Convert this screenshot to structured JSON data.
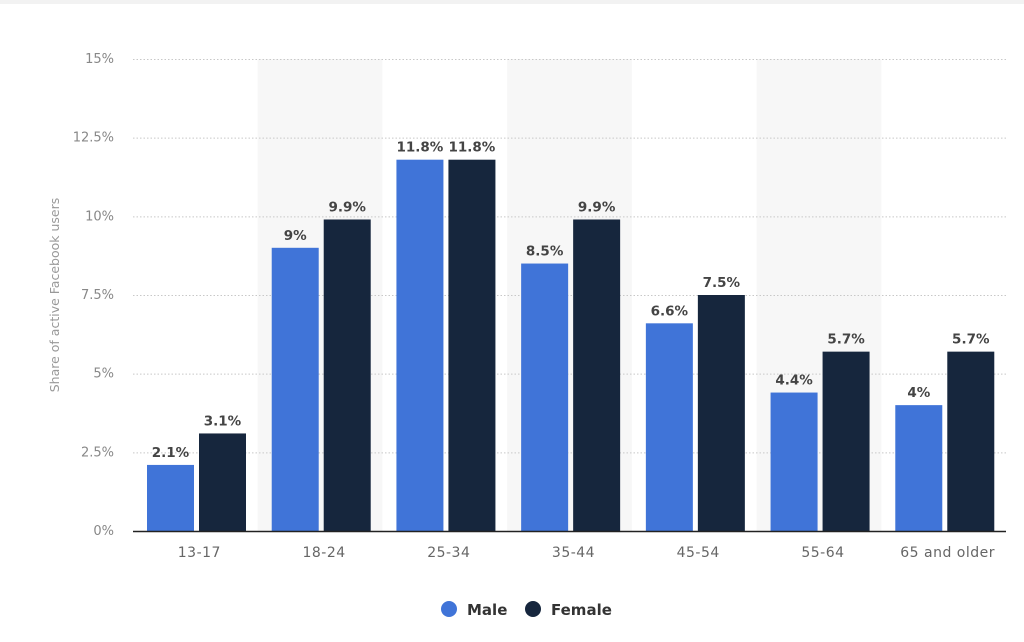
{
  "chart_data": {
    "type": "bar",
    "title": "",
    "xlabel": "",
    "ylabel": "Share of active Facebook users",
    "ylim": [
      0,
      15
    ],
    "yticks": [
      "0%",
      "2.5%",
      "5%",
      "7.5%",
      "10%",
      "12.5%",
      "15%"
    ],
    "grid": true,
    "legend_position": "bottom",
    "categories": [
      "13-17",
      "18-24",
      "25-34",
      "35-44",
      "45-54",
      "55-64",
      "65 and older"
    ],
    "series": [
      {
        "name": "Male",
        "color": "#4074d8",
        "values": [
          2.1,
          9,
          11.8,
          8.5,
          6.6,
          4.4,
          4
        ],
        "labels": [
          "2.1%",
          "9%",
          "11.8%",
          "8.5%",
          "6.6%",
          "4.4%",
          "4%"
        ]
      },
      {
        "name": "Female",
        "color": "#16263d",
        "values": [
          3.1,
          9.9,
          11.8,
          9.9,
          7.5,
          5.7,
          5.7
        ],
        "labels": [
          "3.1%",
          "9.9%",
          "11.8%",
          "9.9%",
          "7.5%",
          "5.7%",
          "5.7%"
        ]
      }
    ]
  }
}
